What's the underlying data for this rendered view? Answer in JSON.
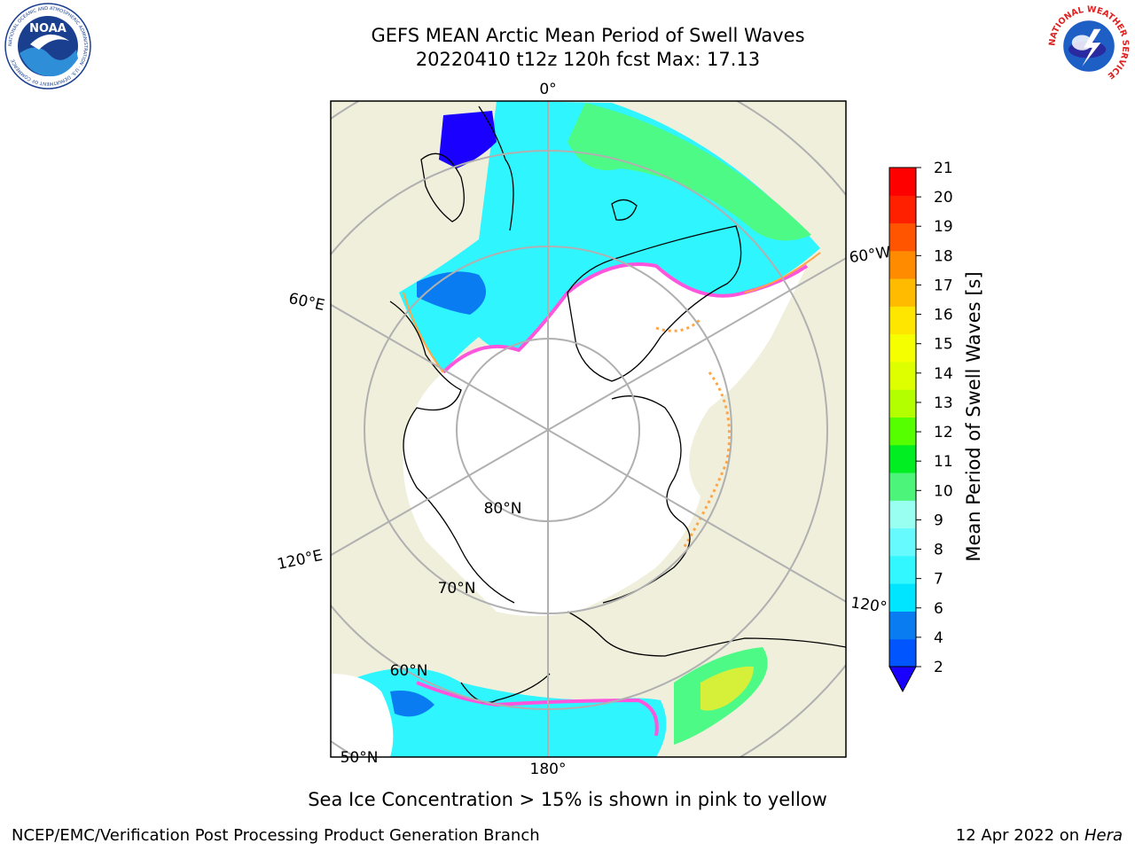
{
  "header": {
    "title_line1": "GEFS MEAN Arctic Mean Period of Swell Waves",
    "title_line2": "20220410 t12z 120h fcst   Max: 17.13"
  },
  "logos": {
    "noaa_text": "NOAA",
    "noaa_ring_text": "NATIONAL OCEANIC AND ATMOSPHERIC ADMINISTRATION · U.S. DEPARTMENT OF COMMERCE",
    "nws_ring_text": "NATIONAL WEATHER SERVICE"
  },
  "map": {
    "lat_labels": [
      "80°N",
      "70°N",
      "60°N",
      "50°N"
    ],
    "lon_labels": [
      "0°",
      "60°E",
      "120°E",
      "180°",
      "120°",
      "60°W"
    ],
    "colors": {
      "land": "#efefdc",
      "ice": "#ffffff",
      "ocean_blue": "#0a7cf2",
      "ocean_cyan": "#2ff5ff",
      "ocean_green": "#4dfa86",
      "ice_edge_pink": "#ff55dd",
      "ice_edge_orange": "#ffa544"
    }
  },
  "colorbar": {
    "label": "Mean Period of Swell Waves [s]",
    "ticks": [
      "2",
      "4",
      "6",
      "7",
      "8",
      "9",
      "10",
      "11",
      "12",
      "13",
      "14",
      "15",
      "16",
      "17",
      "18",
      "19",
      "20",
      "21"
    ],
    "colors": [
      "#0055ff",
      "#0a7cf2",
      "#00e5ff",
      "#33f7ff",
      "#66faff",
      "#99fff0",
      "#4cf57a",
      "#00ee22",
      "#55ff00",
      "#b3ff00",
      "#ddff00",
      "#f5ff00",
      "#ffe600",
      "#ffbb00",
      "#ff8c00",
      "#ff5500",
      "#ff2000",
      "#ff0000"
    ],
    "under_color": "#1a00ff"
  },
  "subtitle": "Sea Ice Concentration > 15% is shown in pink to yellow",
  "footer": {
    "left": "NCEP/EMC/Verification Post Processing Product Generation Branch",
    "date": "12 Apr 2022 on ",
    "machine": "Hera"
  }
}
